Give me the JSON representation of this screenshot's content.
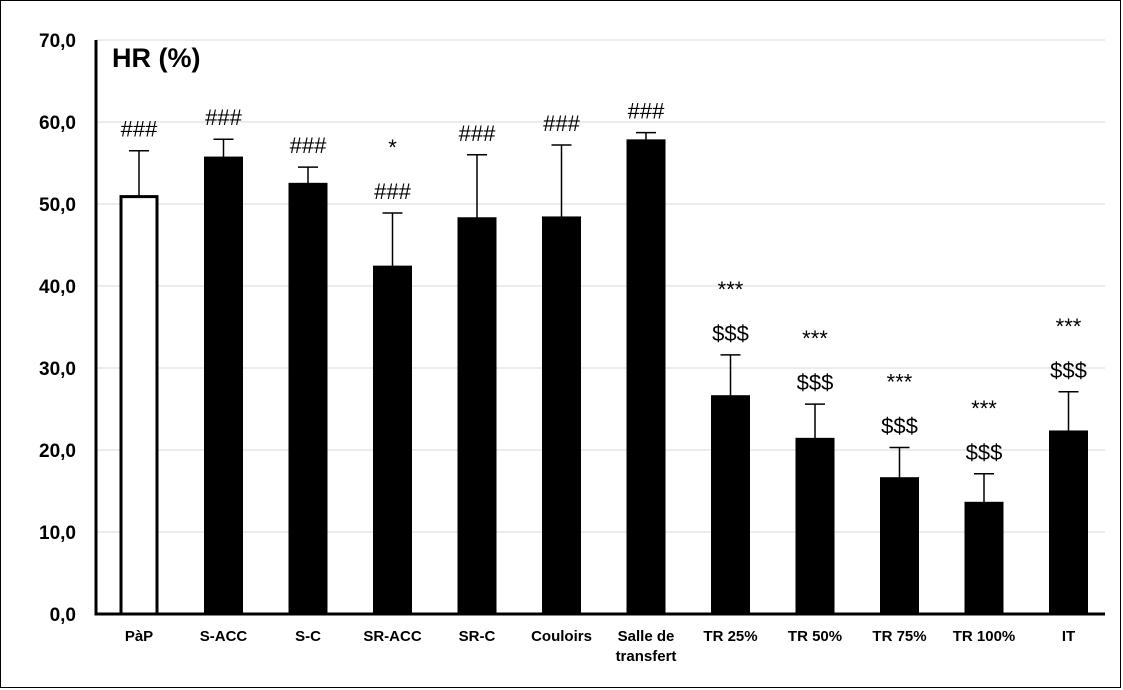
{
  "chart_data": {
    "type": "bar",
    "title": "HR (%)",
    "xlabel": "",
    "ylabel": "",
    "ylim": [
      0,
      70
    ],
    "yticks": [
      "0,0",
      "10,0",
      "20,0",
      "30,0",
      "40,0",
      "50,0",
      "60,0",
      "70,0"
    ],
    "grid": true,
    "categories": [
      [
        "PàP"
      ],
      [
        "S-ACC"
      ],
      [
        "S-C"
      ],
      [
        "SR-ACC"
      ],
      [
        "SR-C"
      ],
      [
        "Couloirs"
      ],
      [
        "Salle de",
        "transfert"
      ],
      [
        "TR 25%"
      ],
      [
        "TR 50%"
      ],
      [
        "TR 75%"
      ],
      [
        "TR 100%"
      ],
      [
        "IT"
      ]
    ],
    "values": [
      50.9,
      55.6,
      52.4,
      42.3,
      48.2,
      48.3,
      57.7,
      26.5,
      21.3,
      16.5,
      13.5,
      22.2
    ],
    "errors": [
      5.6,
      2.3,
      2.1,
      6.6,
      7.8,
      8.9,
      1.0,
      5.1,
      4.3,
      3.8,
      3.6,
      4.9
    ],
    "annotations": [
      [
        "###"
      ],
      [
        "###"
      ],
      [
        "###"
      ],
      [
        "*",
        "###"
      ],
      [
        "###"
      ],
      [
        "###"
      ],
      [
        "###"
      ],
      [
        "***",
        "$$$"
      ],
      [
        "***",
        "$$$"
      ],
      [
        "***",
        "$$$"
      ],
      [
        "***",
        "$$$"
      ],
      [
        "***",
        "$$$"
      ]
    ],
    "bar_fills": [
      "#ffffff",
      "#000000",
      "#000000",
      "#000000",
      "#000000",
      "#000000",
      "#000000",
      "#000000",
      "#000000",
      "#000000",
      "#000000",
      "#000000"
    ],
    "bar_stroke": "#000000",
    "grid_color": "#d9d9d9"
  }
}
